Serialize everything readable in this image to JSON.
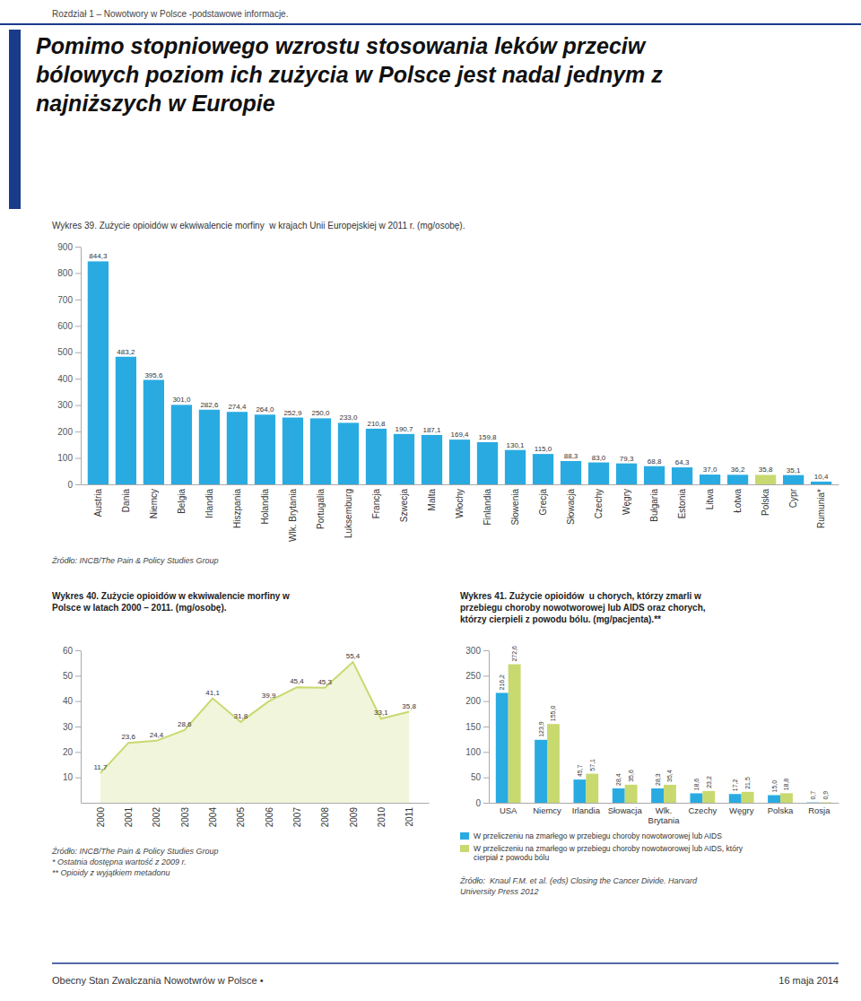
{
  "header": "Rozdział 1 – Nowotwory w Polsce -podstawowe informacje.",
  "title": "Pomimo stopniowego wzrostu stosowania leków przeciw\nbólowych poziom ich zużycia w Polsce jest nadal jednym z\nnajniższych w Europie",
  "footer": [
    "Obecny Stan Zwalczania Nowotwrów w Polsce •",
    "16 maja 2014"
  ],
  "color": "#1a3a8a",
  "chart_data": [
    {
      "type": "bar",
      "title": "Wykres 39. Zużycie opioidów w ekwiwalencie morfiny  w krajach Unii Europejskiej w 2011 r. (mg/osobę).",
      "categories": [
        "Austria",
        "Dania",
        "Niemcy",
        "Belgia",
        "Irlandia",
        "Hiszpania",
        "Holandia",
        "Wlk. Brytania",
        "Portugalia",
        "Luksemburg",
        "Francja",
        "Szwecja",
        "Malta",
        "Włochy",
        "Finlandia",
        "Słowenia",
        "Grecja",
        "Słowacja",
        "Czechy",
        "Węgry",
        "Bułgaria",
        "Estonia",
        "Litwa",
        "Łotwa",
        "Polska",
        "Cypr",
        "Rumunia*"
      ],
      "values": [
        844.3,
        483.2,
        395.6,
        301.0,
        282.6,
        274.4,
        264.0,
        252.9,
        250.0,
        233.0,
        210.8,
        190.7,
        187.1,
        169.4,
        159.8,
        130.1,
        115.0,
        88.3,
        83.0,
        79.3,
        68.8,
        64.3,
        37.0,
        36.2,
        35.8,
        35.1,
        10.4
      ],
      "value_labels": [
        "844,3",
        "483,2",
        "395,6",
        "301,0",
        "282,6",
        "274,4",
        "264,0",
        "252,9",
        "250,0",
        "233,0",
        "210,8",
        "190,7",
        "187,1",
        "169,4",
        "159,8",
        "130,1",
        "115,0",
        "88,3",
        "83,0",
        "79,3",
        "68,8",
        "64,3",
        "37,0",
        "36,2",
        "35,8",
        "35,1",
        "10,4"
      ],
      "colors": [
        "#29ABE2",
        "#29ABE2",
        "#29ABE2",
        "#29ABE2",
        "#29ABE2",
        "#29ABE2",
        "#29ABE2",
        "#29ABE2",
        "#29ABE2",
        "#29ABE2",
        "#29ABE2",
        "#29ABE2",
        "#29ABE2",
        "#29ABE2",
        "#29ABE2",
        "#29ABE2",
        "#29ABE2",
        "#29ABE2",
        "#29ABE2",
        "#29ABE2",
        "#29ABE2",
        "#29ABE2",
        "#29ABE2",
        "#29ABE2",
        "#C8D96F",
        "#29ABE2",
        "#29ABE2"
      ],
      "ylim": [
        0,
        900
      ],
      "yticks": [
        0,
        100,
        200,
        300,
        400,
        500,
        600,
        700,
        800,
        900
      ],
      "data_labels": true,
      "grid": false,
      "annotations": [
        "Źródło: INCB/The Pain & Policy Studies Group"
      ]
    },
    {
      "type": "area",
      "title": "Wykres 40. Zużycie opioidów w ekwiwalencie morfiny w\nPolsce w latach 2000 – 2011. (mg/osobę).",
      "x": [
        2000,
        2001,
        2002,
        2003,
        2004,
        2005,
        2006,
        2007,
        2008,
        2009,
        2010,
        2011
      ],
      "values": [
        11.7,
        23.6,
        24.4,
        28.6,
        41.1,
        31.8,
        39.9,
        45.4,
        45.3,
        55.4,
        33.1,
        35.8
      ],
      "value_labels": [
        "11,7",
        "23,6",
        "24,4",
        "28,6",
        "41,1",
        "31,8",
        "39,9",
        "45,4",
        "45,3",
        "55,4",
        "33,1",
        "35,8"
      ],
      "color": "#C8D96F",
      "xlim": [
        1999.3,
        2011.7
      ],
      "xticks": [
        2000,
        2001,
        2002,
        2003,
        2004,
        2005,
        2006,
        2007,
        2008,
        2009,
        2010,
        2011
      ],
      "ylim": [
        0,
        60
      ],
      "yticks": [
        10,
        20,
        30,
        40,
        50,
        60
      ],
      "data_labels": true,
      "grid": false,
      "annotations": [
        "Źródło: INCB/The Pain & Policy Studies Group",
        "* Ostatnia dostępna wartość z 2009 r.",
        "** Opioidy z wyjątkiem metadonu"
      ]
    },
    {
      "type": "bar",
      "title": "Wykres 41. Zużycie opioidów  u chorych, którzy zmarli w\nprzebiegu choroby nowotworowej lub AIDS oraz chorych,\nktórzy cierpieli z powodu bólu. (mg/pacjenta).**",
      "categories": [
        "USA",
        "Niemcy",
        "Irlandia",
        "Słowacja",
        "Wlk.\nBrytania",
        "Czechy",
        "Węgry",
        "Polska",
        "Rosja"
      ],
      "series": [
        {
          "name": "W przeliczeniu na zmarłego w przebiegu choroby nowotworowej lub AIDS",
          "color": "#29ABE2",
          "values": [
            216.2,
            123.9,
            45.7,
            28.4,
            28.3,
            18.6,
            17.2,
            15.0,
            0.7
          ],
          "value_labels": [
            "216,2",
            "123,9",
            "45,7",
            "28,4",
            "28,3",
            "18,6",
            "17,2",
            "15,0",
            "0,7"
          ]
        },
        {
          "name": "W przeliczeniu na zmarłego w przebiegu choroby nowotworowej lub AIDS, który\ncierpiał z powodu bólu",
          "color": "#C8D96F",
          "values": [
            272.6,
            155.0,
            57.1,
            35.6,
            35.4,
            23.2,
            21.5,
            18.8,
            0.9
          ],
          "value_labels": [
            "272,6",
            "155,0",
            "57,1",
            "35,6",
            "35,4",
            "23,2",
            "21,5",
            "18,8",
            "0,9"
          ]
        }
      ],
      "ylim": [
        0,
        300
      ],
      "yticks": [
        0,
        50,
        100,
        150,
        200,
        250,
        300
      ],
      "data_labels": true,
      "grid": false,
      "legend": "bottom",
      "annotations": [
        "Źródło:  Knaul F.M. et al. (eds) Closing the Cancer Divide. Harvard",
        "University Press 2012"
      ]
    }
  ]
}
